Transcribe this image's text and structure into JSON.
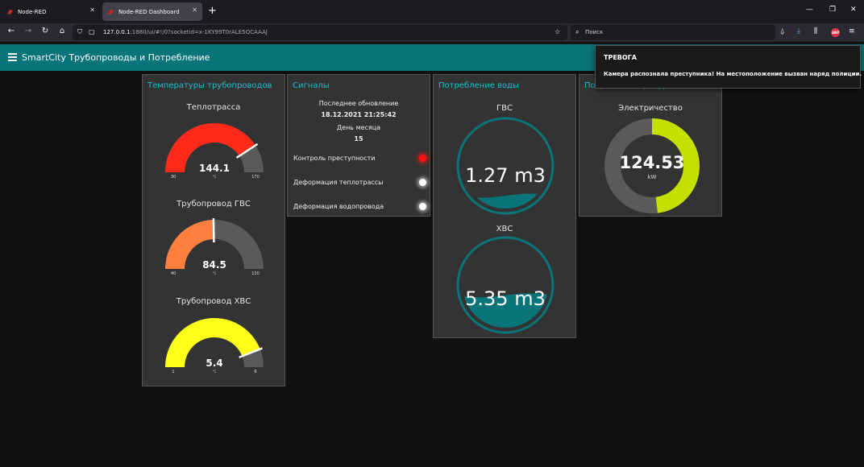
{
  "browser": {
    "tabs": [
      {
        "title": "Node-RED",
        "icon": "node-red-icon",
        "active": false
      },
      {
        "title": "Node-RED Dashboard",
        "icon": "node-red-dashboard-icon",
        "active": true
      }
    ],
    "url_host": "127.0.0.1",
    "url_rest": ":1880/ui/#!/0?socketid=x-1KY99T0rALE5QCAAAJ",
    "search_placeholder": "Поиск",
    "abp_label": "ABP"
  },
  "header": {
    "title": "SmartCity Трубопроводы и Потребление",
    "color": "#097479"
  },
  "cards": {
    "temps": {
      "title": "Температуры трубопроводов",
      "gauges": [
        {
          "label": "Теплотрасса",
          "value": "144.1",
          "numeric": 144.1,
          "min": "30",
          "max": "170",
          "min_n": 30,
          "max_n": 170,
          "unit": "°C",
          "color": "#ff2a1a"
        },
        {
          "label": "Трубопровод ГВС",
          "value": "84.5",
          "numeric": 84.5,
          "min": "40",
          "max": "130",
          "min_n": 40,
          "max_n": 130,
          "unit": "°C",
          "color": "#ff7f3f"
        },
        {
          "label": "Трубопровод ХВС",
          "value": "5.4",
          "numeric": 5.4,
          "min": "1",
          "max": "6",
          "min_n": 1,
          "max_n": 6,
          "unit": "°C",
          "color": "#ffff1a"
        }
      ]
    },
    "signals": {
      "title": "Сигналы",
      "last_update_label": "Последнее обновление",
      "last_update_value": "18.12.2021 21:25:42",
      "day_label": "День месяца",
      "day_value": "15",
      "leds": [
        {
          "label": "Контроль преступности",
          "color": "#ff1010"
        },
        {
          "label": "Деформация теплотрассы",
          "color": "#ffffff"
        },
        {
          "label": "Деформация водопровода",
          "color": "#ffffff"
        }
      ]
    },
    "water": {
      "title": "Потребление воды",
      "tanks": [
        {
          "label": "ГВС",
          "value": "1.27 m3",
          "fill_fraction": 0.15
        },
        {
          "label": "ХВС",
          "value": "5.35 m3",
          "fill_fraction": 0.38
        }
      ],
      "color": "#097479"
    },
    "power": {
      "title": "Потребление ресурсов",
      "label": "Электричество",
      "value": "124.53",
      "unit": "kW",
      "fill_fraction": 0.48,
      "color": "#c4e000"
    }
  },
  "notification": {
    "title": "ТРЕВОГА",
    "message": "Камера распознала преступника! На местоположение вызван наряд полиции."
  }
}
